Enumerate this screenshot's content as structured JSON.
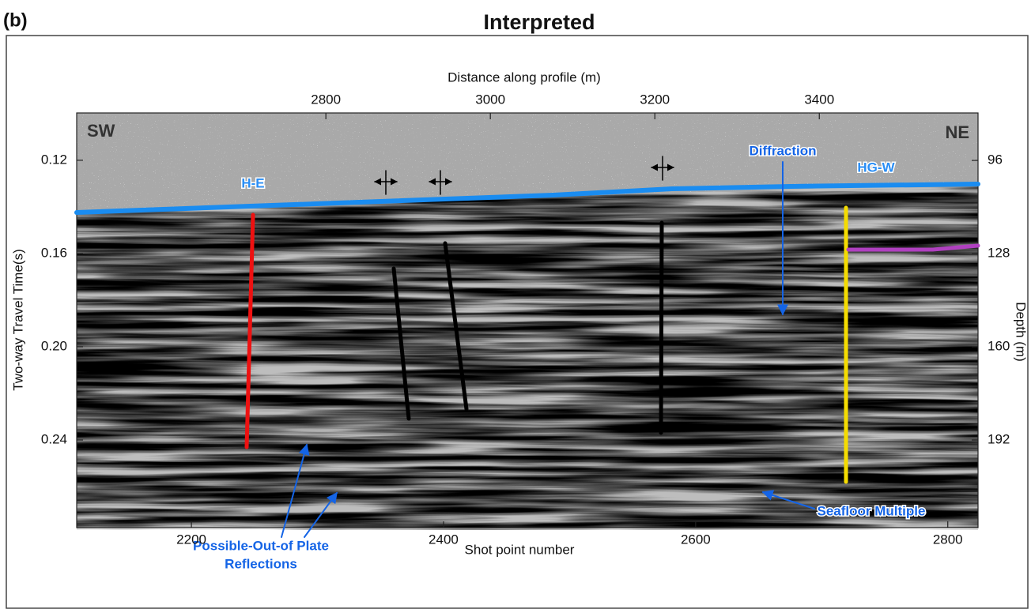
{
  "figure": {
    "panel": "(b)",
    "title": "Interpreted",
    "top_axis": {
      "label": "Distance along profile (m)",
      "xlim": [
        2497,
        3593
      ],
      "xticks": [
        2800,
        3000,
        3200,
        3400
      ]
    },
    "bottom_axis": {
      "label": "Shot point number",
      "xlim": [
        2109,
        2824
      ],
      "xticks": [
        2200,
        2400,
        2600,
        2800
      ]
    },
    "left_axis": {
      "label": "Two-way Travel Time(s)",
      "ylim": [
        0.0997,
        0.2776
      ],
      "yticks": [
        0.12,
        0.16,
        {
          "value": 0.2,
          "label": "0.20"
        },
        0.24
      ]
    },
    "right_axis": {
      "label": "Depth (m)",
      "ylim": [
        79.7,
        222.1
      ],
      "yticks": [
        96,
        128,
        160,
        192
      ]
    },
    "annotations": {
      "sw": "SW",
      "ne": "NE",
      "h_e": "H-E",
      "hg_w": "HG-W",
      "diffraction": "Diffraction",
      "seafloor_multiple": "Seafloor Multiple",
      "out_of_plate": [
        "Possible-Out-of Plate",
        "Reflections"
      ]
    }
  }
}
